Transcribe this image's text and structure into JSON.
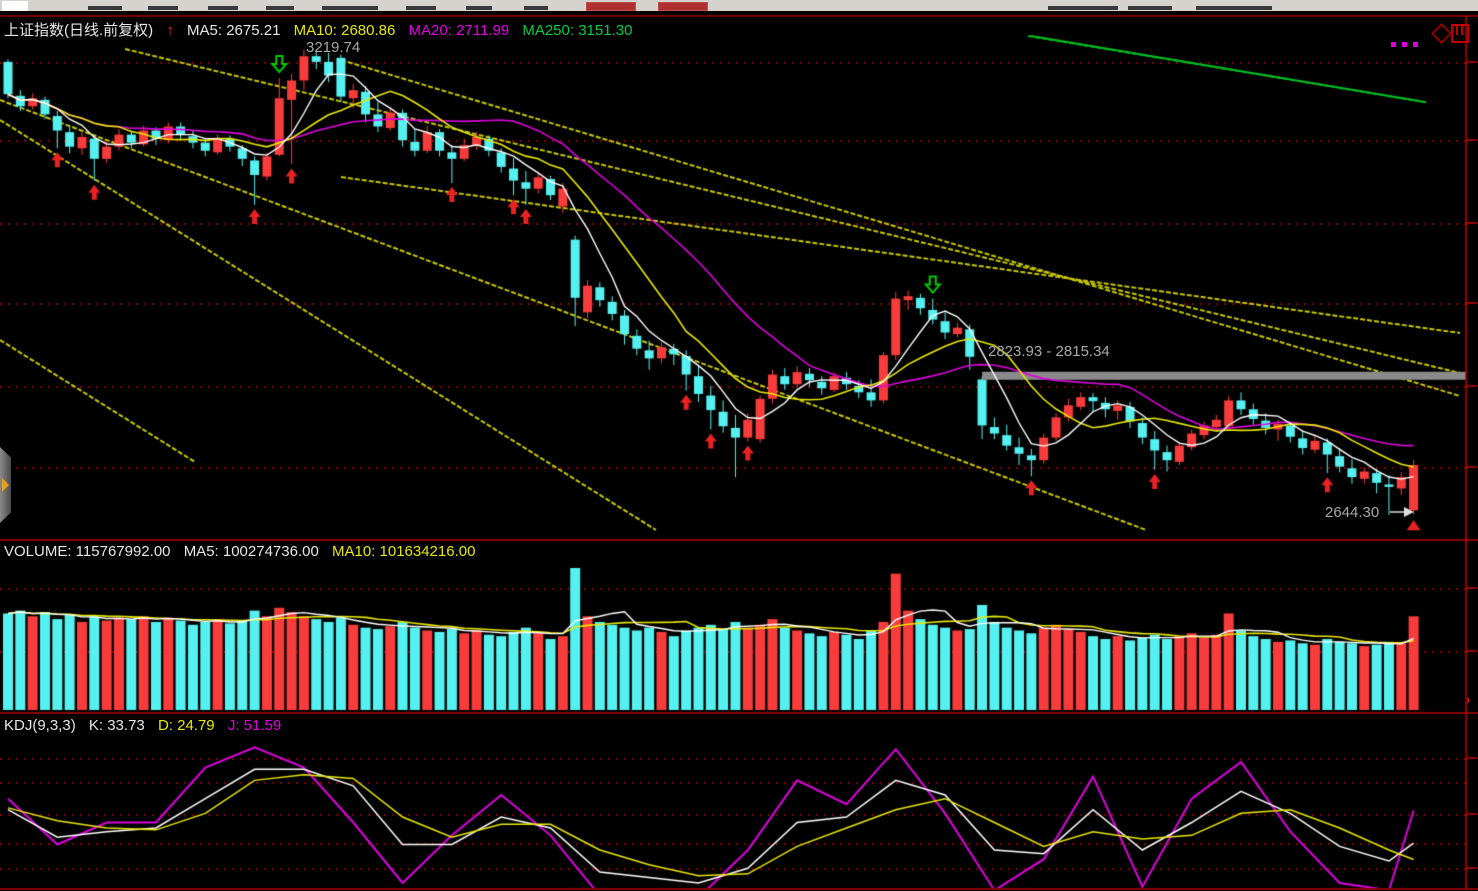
{
  "header": {
    "title": "上证指数(日线.前复权)",
    "arrow": "↑",
    "ma5": "MA5: 2675.21",
    "ma10": "MA10: 2680.86",
    "ma20": "MA20: 2711.99",
    "ma250": "MA250: 3151.30"
  },
  "volume_header": {
    "volume": "VOLUME: 115767992.00",
    "ma5": "MA5: 100274736.00",
    "ma10": "MA10: 101634216.00"
  },
  "kdj_header": {
    "name": "KDJ(9,3,3)",
    "k": "K: 33.73",
    "d": "D: 24.79",
    "j": "J: 51.59"
  },
  "colors": {
    "up": "#f83b3b",
    "down": "#55f0f0",
    "ma5": "#ffffff",
    "ma10": "#e8e800",
    "ma20": "#dd00dd",
    "ma250": "#00bb22",
    "grid": "#8b0000",
    "trend": "#c8c800",
    "axis": "#c80000",
    "label": "#a9a9a9",
    "gap_bar": "#8a8a8a",
    "marker_buy": "#e82222",
    "marker_sell": "#00cc00",
    "k": "#ffffff",
    "d": "#e8e800",
    "j": "#dd00dd"
  },
  "chart_data": [
    {
      "name": "main",
      "type": "candlestick",
      "ylim": [
        2600,
        3250
      ],
      "grid": "red-dotted-horizontal",
      "legend_position": "top-left",
      "peak_label": "3219.74",
      "low_label": "2644.30",
      "gap_zone": {
        "label": "2823.93 - 2815.34",
        "from": 2823.93,
        "to": 2815.34,
        "start_index": 79
      },
      "candles": [
        [
          3205,
          3208,
          3160,
          3165
        ],
        [
          3163,
          3170,
          3144,
          3150
        ],
        [
          3150,
          3166,
          3146,
          3160
        ],
        [
          3158,
          3162,
          3134,
          3140
        ],
        [
          3138,
          3144,
          3098,
          3120
        ],
        [
          3118,
          3126,
          3092,
          3100
        ],
        [
          3098,
          3118,
          3090,
          3112
        ],
        [
          3110,
          3114,
          3058,
          3085
        ],
        [
          3085,
          3106,
          3080,
          3100
        ],
        [
          3100,
          3122,
          3096,
          3115
        ],
        [
          3115,
          3120,
          3098,
          3105
        ],
        [
          3103,
          3126,
          3100,
          3120
        ],
        [
          3120,
          3124,
          3102,
          3110
        ],
        [
          3108,
          3130,
          3104,
          3125
        ],
        [
          3125,
          3130,
          3108,
          3115
        ],
        [
          3113,
          3120,
          3098,
          3105
        ],
        [
          3105,
          3110,
          3088,
          3095
        ],
        [
          3093,
          3115,
          3090,
          3110
        ],
        [
          3110,
          3114,
          3094,
          3100
        ],
        [
          3098,
          3102,
          3076,
          3085
        ],
        [
          3083,
          3088,
          3028,
          3065
        ],
        [
          3063,
          3092,
          3058,
          3088
        ],
        [
          3090,
          3185,
          3088,
          3160
        ],
        [
          3158,
          3190,
          3078,
          3182
        ],
        [
          3182,
          3219.74,
          3170,
          3212
        ],
        [
          3212,
          3218,
          3196,
          3205
        ],
        [
          3205,
          3216,
          3180,
          3188
        ],
        [
          3210,
          3214,
          3155,
          3162
        ],
        [
          3160,
          3178,
          3148,
          3170
        ],
        [
          3168,
          3175,
          3130,
          3140
        ],
        [
          3140,
          3155,
          3118,
          3125
        ],
        [
          3123,
          3148,
          3120,
          3142
        ],
        [
          3142,
          3146,
          3100,
          3108
        ],
        [
          3106,
          3122,
          3088,
          3095
        ],
        [
          3095,
          3126,
          3092,
          3118
        ],
        [
          3118,
          3122,
          3088,
          3095
        ],
        [
          3093,
          3102,
          3055,
          3085
        ],
        [
          3085,
          3110,
          3082,
          3102
        ],
        [
          3102,
          3118,
          3096,
          3112
        ],
        [
          3110,
          3114,
          3088,
          3095
        ],
        [
          3093,
          3098,
          3068,
          3075
        ],
        [
          3073,
          3086,
          3040,
          3058
        ],
        [
          3056,
          3070,
          3028,
          3048
        ],
        [
          3048,
          3068,
          3042,
          3062
        ],
        [
          3060,
          3064,
          3034,
          3040
        ],
        [
          3026,
          3055,
          3018,
          3048
        ],
        [
          2985,
          2990,
          2878,
          2913
        ],
        [
          2895,
          2935,
          2888,
          2928
        ],
        [
          2926,
          2932,
          2902,
          2910
        ],
        [
          2908,
          2915,
          2885,
          2893
        ],
        [
          2891,
          2898,
          2855,
          2868
        ],
        [
          2866,
          2874,
          2842,
          2850
        ],
        [
          2848,
          2860,
          2824,
          2838
        ],
        [
          2838,
          2858,
          2832,
          2852
        ],
        [
          2850,
          2856,
          2830,
          2843
        ],
        [
          2841,
          2848,
          2798,
          2818
        ],
        [
          2816,
          2830,
          2784,
          2794
        ],
        [
          2792,
          2804,
          2750,
          2774
        ],
        [
          2772,
          2786,
          2746,
          2754
        ],
        [
          2752,
          2768,
          2691,
          2740
        ],
        [
          2740,
          2770,
          2735,
          2762
        ],
        [
          2738,
          2792,
          2734,
          2788
        ],
        [
          2788,
          2824,
          2782,
          2818
        ],
        [
          2816,
          2826,
          2799,
          2806
        ],
        [
          2806,
          2828,
          2801,
          2821
        ],
        [
          2819,
          2826,
          2803,
          2811
        ],
        [
          2809,
          2816,
          2793,
          2801
        ],
        [
          2799,
          2821,
          2796,
          2816
        ],
        [
          2814,
          2821,
          2799,
          2806
        ],
        [
          2804,
          2811,
          2789,
          2796
        ],
        [
          2796,
          2812,
          2778,
          2786
        ],
        [
          2786,
          2846,
          2782,
          2842
        ],
        [
          2842,
          2920,
          2836,
          2912
        ],
        [
          2910,
          2922,
          2898,
          2915
        ],
        [
          2913,
          2918,
          2892,
          2900
        ],
        [
          2898,
          2912,
          2880,
          2886
        ],
        [
          2884,
          2895,
          2862,
          2870
        ],
        [
          2868,
          2882,
          2864,
          2876
        ],
        [
          2874,
          2880,
          2823.93,
          2840
        ],
        [
          2812,
          2815.34,
          2738,
          2755
        ],
        [
          2753,
          2765,
          2738,
          2745
        ],
        [
          2743,
          2756,
          2724,
          2730
        ],
        [
          2728,
          2740,
          2706,
          2720
        ],
        [
          2718,
          2726,
          2692,
          2712
        ],
        [
          2712,
          2745,
          2708,
          2740
        ],
        [
          2740,
          2770,
          2736,
          2765
        ],
        [
          2765,
          2788,
          2760,
          2780
        ],
        [
          2778,
          2796,
          2774,
          2790
        ],
        [
          2790,
          2795,
          2772,
          2785
        ],
        [
          2783,
          2790,
          2765,
          2775
        ],
        [
          2773,
          2786,
          2762,
          2780
        ],
        [
          2778,
          2784,
          2752,
          2760
        ],
        [
          2758,
          2765,
          2732,
          2740
        ],
        [
          2738,
          2748,
          2700,
          2724
        ],
        [
          2722,
          2730,
          2698,
          2712
        ],
        [
          2710,
          2735,
          2706,
          2730
        ],
        [
          2728,
          2750,
          2724,
          2745
        ],
        [
          2743,
          2760,
          2738,
          2755
        ],
        [
          2753,
          2768,
          2748,
          2762
        ],
        [
          2754,
          2792,
          2750,
          2786
        ],
        [
          2786,
          2796,
          2768,
          2775
        ],
        [
          2775,
          2782,
          2756,
          2763
        ],
        [
          2761,
          2770,
          2744,
          2752
        ],
        [
          2750,
          2762,
          2736,
          2757
        ],
        [
          2755,
          2760,
          2734,
          2741
        ],
        [
          2739,
          2749,
          2719,
          2727
        ],
        [
          2725,
          2743,
          2721,
          2736
        ],
        [
          2734,
          2739,
          2696,
          2719
        ],
        [
          2717,
          2727,
          2697,
          2704
        ],
        [
          2702,
          2713,
          2683,
          2691
        ],
        [
          2689,
          2703,
          2683,
          2698
        ],
        [
          2696,
          2701,
          2671,
          2684
        ],
        [
          2682,
          2693,
          2644.3,
          2679
        ],
        [
          2677,
          2697,
          2669,
          2691
        ],
        [
          2650,
          2712,
          2645,
          2706
        ]
      ],
      "markers": {
        "buy_arrows": [
          4,
          7,
          20,
          23,
          36,
          41,
          42,
          55,
          57,
          60,
          83,
          93,
          107
        ],
        "sell_arrows": [
          22,
          75
        ],
        "end_triangle": 114
      },
      "ma250_points": [
        [
          83,
          3237
        ],
        [
          115,
          3155
        ]
      ],
      "trendlines": [
        [
          0,
          100,
          1146,
          530
        ],
        [
          0,
          120,
          656,
          530
        ],
        [
          125,
          49,
          1460,
          373
        ],
        [
          341,
          60,
          1460,
          396
        ],
        [
          341,
          177,
          1460,
          333
        ],
        [
          0,
          340,
          195,
          462
        ]
      ],
      "green_trendline": [
        1028,
        36,
        1425,
        102
      ]
    },
    {
      "name": "volume",
      "type": "bar",
      "ma_periods": [
        5,
        10
      ],
      "values": [
        68,
        70,
        66,
        69,
        64,
        67,
        62,
        66,
        63,
        65,
        64,
        66,
        62,
        65,
        63,
        60,
        62,
        64,
        61,
        63,
        70,
        66,
        72,
        69,
        66,
        64,
        62,
        65,
        60,
        58,
        57,
        59,
        62,
        58,
        56,
        55,
        57,
        54,
        56,
        53,
        52,
        55,
        58,
        54,
        50,
        52,
        100,
        66,
        62,
        60,
        58,
        56,
        58,
        55,
        52,
        56,
        58,
        60,
        57,
        62,
        58,
        60,
        64,
        58,
        56,
        54,
        52,
        55,
        53,
        50,
        56,
        62,
        96,
        70,
        64,
        60,
        58,
        56,
        57,
        74,
        62,
        58,
        56,
        54,
        58,
        60,
        57,
        55,
        52,
        50,
        52,
        49,
        51,
        53,
        50,
        52,
        54,
        51,
        53,
        68,
        56,
        52,
        50,
        48,
        49,
        47,
        46,
        50,
        48,
        47,
        45,
        46,
        48,
        47,
        66
      ]
    },
    {
      "name": "kdj",
      "type": "line",
      "sample_step": 4,
      "ylim": [
        0,
        100
      ],
      "series": [
        {
          "name": "K",
          "values": [
            52,
            37,
            40,
            42,
            58,
            74,
            74,
            65,
            33,
            33,
            48,
            42,
            18,
            15,
            12,
            20,
            45,
            48,
            68,
            60,
            30,
            28,
            52,
            30,
            45,
            62,
            50,
            32,
            24,
            33.73
          ]
        },
        {
          "name": "D",
          "values": [
            53,
            46,
            42,
            41,
            50,
            68,
            71,
            69,
            48,
            37,
            44,
            44,
            30,
            22,
            16,
            17,
            32,
            42,
            52,
            58,
            45,
            32,
            40,
            36,
            38,
            50,
            52,
            42,
            30,
            24.79
          ]
        },
        {
          "name": "J",
          "values": [
            58,
            33,
            45,
            45,
            75,
            86,
            75,
            45,
            12,
            38,
            60,
            38,
            5,
            8,
            4,
            30,
            68,
            55,
            85,
            50,
            8,
            25,
            70,
            10,
            58,
            78,
            40,
            12,
            8,
            51.59
          ]
        }
      ]
    }
  ]
}
